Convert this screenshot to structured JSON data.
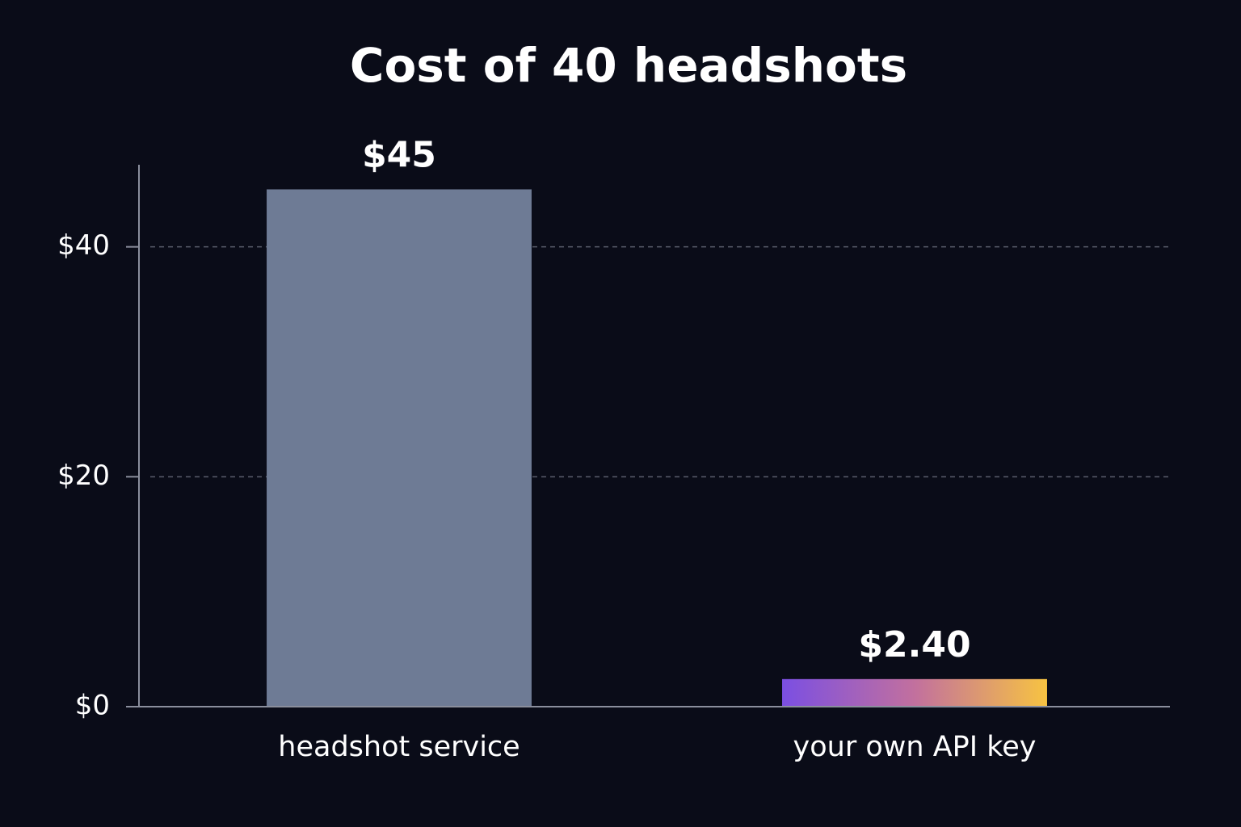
{
  "chart_data": {
    "type": "bar",
    "title": "Cost of 40 headshots",
    "categories": [
      "headshot service",
      "your own API key"
    ],
    "values": [
      45,
      2.4
    ],
    "value_labels": [
      "$45",
      "$2.40"
    ],
    "colors": [
      [
        "#6e7b95"
      ],
      [
        "#7b4fe2",
        "#c2709e",
        "#f7c342"
      ]
    ],
    "ylim": [
      0,
      47
    ],
    "yticks": [
      {
        "value": 0,
        "label": "$0"
      },
      {
        "value": 20,
        "label": "$20"
      },
      {
        "value": 40,
        "label": "$40"
      }
    ],
    "grid": true
  }
}
